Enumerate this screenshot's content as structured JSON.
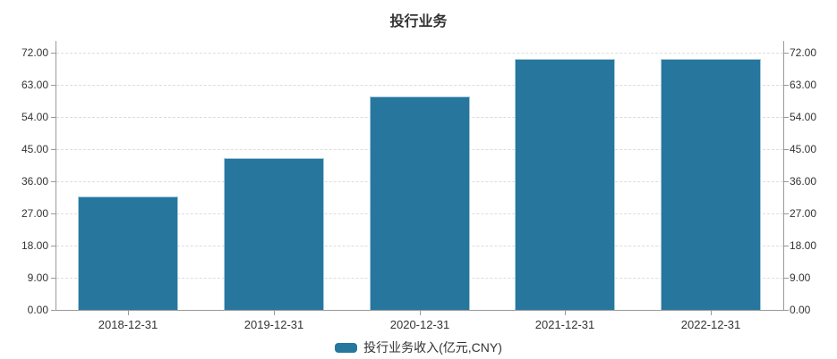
{
  "chart_data": {
    "type": "bar",
    "title": "投行业务",
    "categories": [
      "2018-12-31",
      "2019-12-31",
      "2020-12-31",
      "2021-12-31",
      "2022-12-31"
    ],
    "series": [
      {
        "name": "投行业务收入(亿元,CNY)",
        "values": [
          31.8,
          42.5,
          59.8,
          70.3,
          70.2
        ],
        "color": "#26769E",
        "border_color": "#A6CBDC"
      }
    ],
    "xlabel": "",
    "ylabel": "",
    "ylim": [
      0,
      72
    ],
    "y_interval": 9,
    "y_tick_labels": [
      "0.00",
      "9.00",
      "18.00",
      "27.00",
      "36.00",
      "45.00",
      "54.00",
      "63.00",
      "72.00"
    ],
    "dual_y_axis": true,
    "grid": "horizontal-dashed",
    "legend_position": "bottom",
    "colors": {
      "axis": "#999999",
      "gridline": "#DDDDDD",
      "text": "#333333",
      "title": "#333333"
    }
  }
}
